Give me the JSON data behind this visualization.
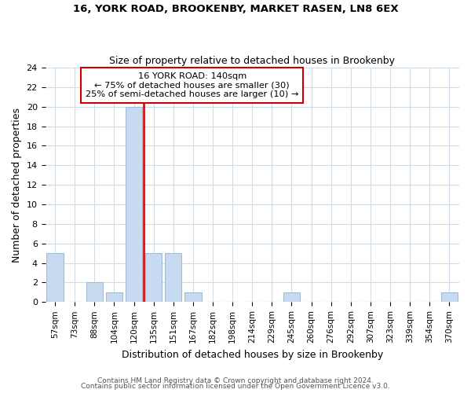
{
  "title1": "16, YORK ROAD, BROOKENBY, MARKET RASEN, LN8 6EX",
  "title2": "Size of property relative to detached houses in Brookenby",
  "xlabel": "Distribution of detached houses by size in Brookenby",
  "ylabel": "Number of detached properties",
  "bar_labels": [
    "57sqm",
    "73sqm",
    "88sqm",
    "104sqm",
    "120sqm",
    "135sqm",
    "151sqm",
    "167sqm",
    "182sqm",
    "198sqm",
    "214sqm",
    "229sqm",
    "245sqm",
    "260sqm",
    "276sqm",
    "292sqm",
    "307sqm",
    "323sqm",
    "339sqm",
    "354sqm",
    "370sqm"
  ],
  "bar_heights": [
    5,
    0,
    2,
    1,
    20,
    5,
    5,
    1,
    0,
    0,
    0,
    0,
    1,
    0,
    0,
    0,
    0,
    0,
    0,
    0,
    1
  ],
  "bar_color": "#c8daf0",
  "bar_edgecolor": "#a0bcd8",
  "vline_x": 4.5,
  "vline_color": "#cc0000",
  "annotation_title": "16 YORK ROAD: 140sqm",
  "annotation_line1": "← 75% of detached houses are smaller (30)",
  "annotation_line2": "25% of semi-detached houses are larger (10) →",
  "annotation_box_edgecolor": "#cc0000",
  "ylim": [
    0,
    24
  ],
  "yticks": [
    0,
    2,
    4,
    6,
    8,
    10,
    12,
    14,
    16,
    18,
    20,
    22,
    24
  ],
  "footer1": "Contains HM Land Registry data © Crown copyright and database right 2024.",
  "footer2": "Contains public sector information licensed under the Open Government Licence v3.0.",
  "grid_color": "#d0dce8",
  "background_color": "#ffffff"
}
